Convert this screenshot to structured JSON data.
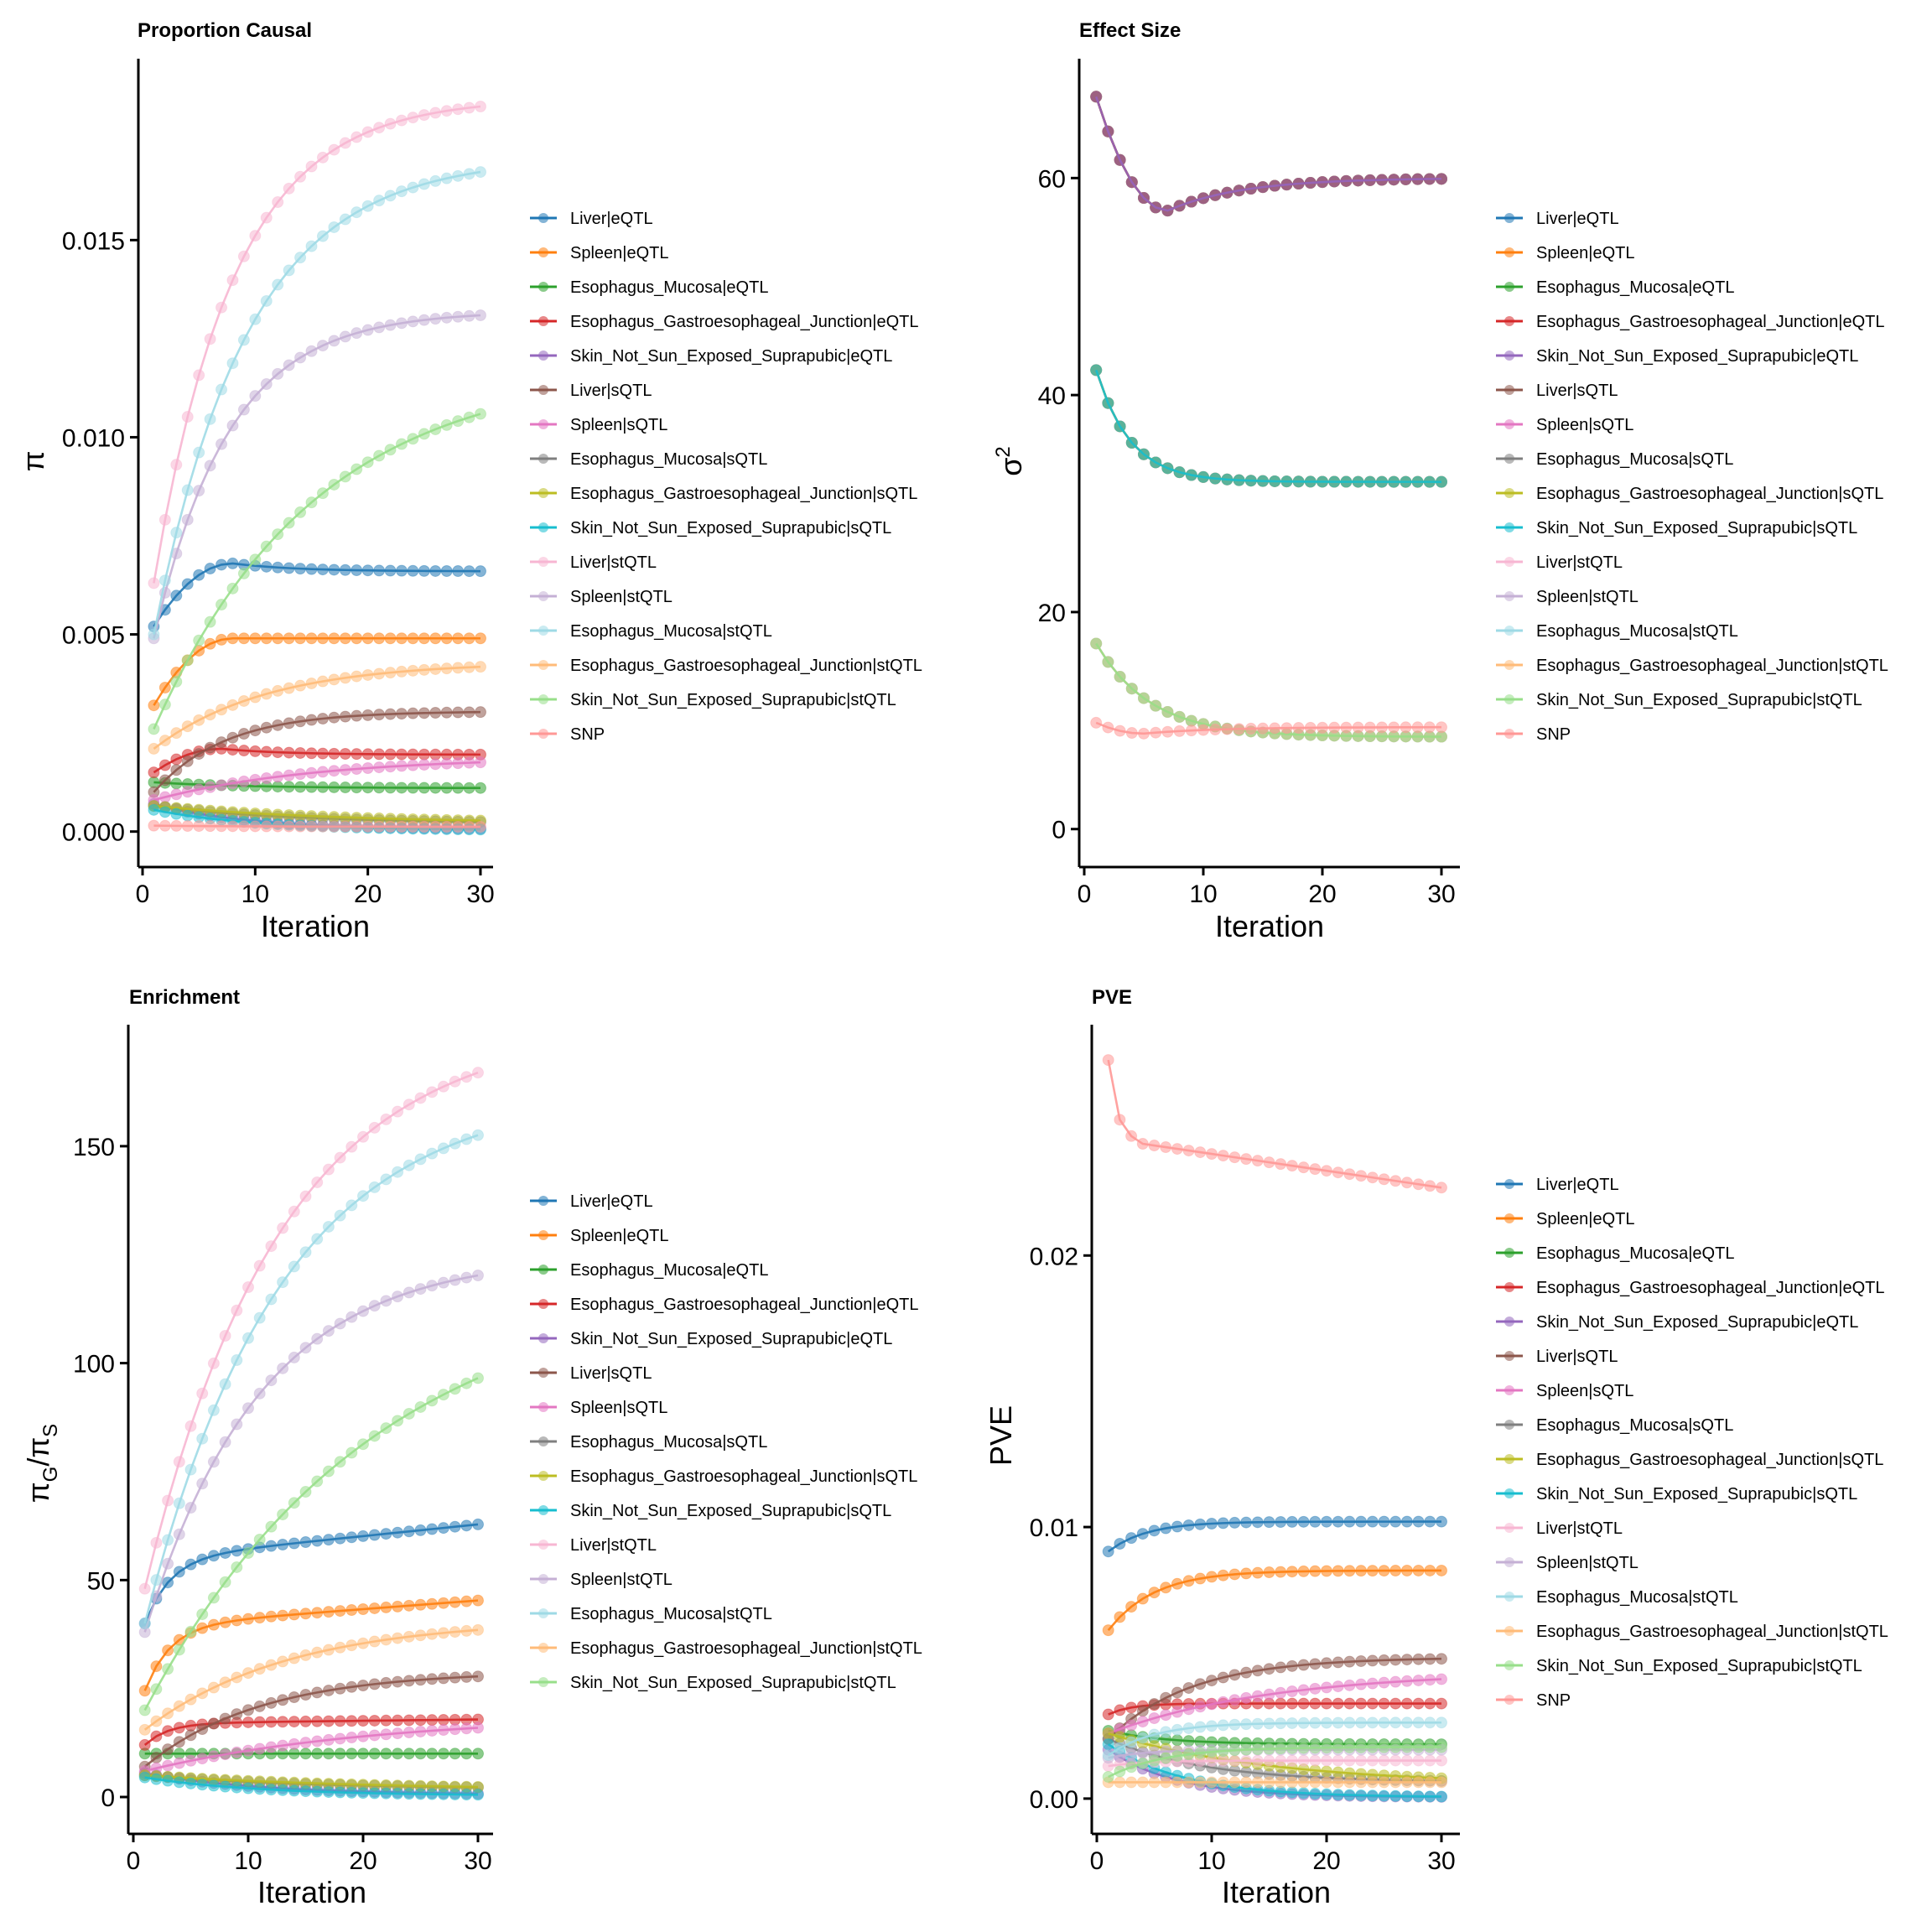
{
  "palette": {
    "Liver|eQTL": "#1f77b4",
    "Spleen|eQTL": "#ff7f0e",
    "Esophagus_Mucosa|eQTL": "#2ca02c",
    "Esophagus_Gastroesophageal_Junction|eQTL": "#d62728",
    "Skin_Not_Sun_Exposed_Suprapubic|eQTL": "#9467bd",
    "Liver|sQTL": "#8c564b",
    "Spleen|sQTL": "#e377c2",
    "Esophagus_Mucosa|sQTL": "#7f7f7f",
    "Esophagus_Gastroesophageal_Junction|sQTL": "#bcbd22",
    "Skin_Not_Sun_Exposed_Suprapubic|sQTL": "#17becf",
    "Liver|stQTL": "#f7b6d2",
    "Spleen|stQTL": "#c5b0d5",
    "Esophagus_Mucosa|stQTL": "#9edae5",
    "Esophagus_Gastroesophageal_Junction|stQTL": "#ffbb78",
    "Skin_Not_Sun_Exposed_Suprapubic|stQTL": "#98df8a",
    "SNP": "#ff9896"
  },
  "chart_data": [
    {
      "id": "proportion-causal",
      "type": "line",
      "title": "Proportion Causal",
      "xlabel": "Iteration",
      "ylabel": "π",
      "xlim": [
        0,
        31
      ],
      "ylim": [
        -0.0009,
        0.0196
      ],
      "xticks": [
        0,
        10,
        20,
        30
      ],
      "xtick_labels": [
        "0",
        "10",
        "20",
        "30"
      ],
      "yticks": [
        0.0,
        0.005,
        0.01,
        0.015
      ],
      "ytick_labels": [
        "0.000",
        "0.005",
        "0.010",
        "0.015"
      ],
      "grid": false,
      "legend_position": "right",
      "series": [
        {
          "name": "Liver|eQTL",
          "curve": {
            "type": "hump",
            "start": 0.0052,
            "peak": 0.0068,
            "peak_at": 8,
            "end": 0.0066
          }
        },
        {
          "name": "Spleen|eQTL",
          "curve": {
            "type": "hump",
            "start": 0.0032,
            "peak": 0.0049,
            "peak_at": 8,
            "end": 0.0049
          }
        },
        {
          "name": "Esophagus_Mucosa|eQTL",
          "curve": {
            "type": "exp",
            "start": 0.00125,
            "end": 0.0011,
            "rate": 0.12
          }
        },
        {
          "name": "Esophagus_Gastroesophageal_Junction|eQTL",
          "curve": {
            "type": "hump",
            "start": 0.0015,
            "peak": 0.0021,
            "peak_at": 7,
            "end": 0.00195
          }
        },
        {
          "name": "Skin_Not_Sun_Exposed_Suprapubic|eQTL",
          "curve": {
            "type": "exp",
            "start": 0.0007,
            "end": 5e-05,
            "rate": 0.12
          }
        },
        {
          "name": "Liver|sQTL",
          "curve": {
            "type": "exp",
            "start": 0.001,
            "end": 0.00305,
            "rate": 0.16
          }
        },
        {
          "name": "Spleen|sQTL",
          "curve": {
            "type": "exp",
            "start": 0.0008,
            "end": 0.0019,
            "rate": 0.07
          }
        },
        {
          "name": "Esophagus_Mucosa|sQTL",
          "curve": {
            "type": "exp",
            "start": 0.00065,
            "end": 0.0002,
            "rate": 0.08
          }
        },
        {
          "name": "Esophagus_Gastroesophageal_Junction|sQTL",
          "curve": {
            "type": "exp",
            "start": 0.00065,
            "end": 0.0002,
            "rate": 0.06
          }
        },
        {
          "name": "Skin_Not_Sun_Exposed_Suprapubic|sQTL",
          "curve": {
            "type": "exp",
            "start": 0.00055,
            "end": 3e-05,
            "rate": 0.11
          }
        },
        {
          "name": "Liver|stQTL",
          "curve": {
            "type": "exp",
            "start": 0.0063,
            "end": 0.0186,
            "rate": 0.14
          }
        },
        {
          "name": "Spleen|stQTL",
          "curve": {
            "type": "exp",
            "start": 0.0049,
            "end": 0.0132,
            "rate": 0.15
          }
        },
        {
          "name": "Esophagus_Mucosa|stQTL",
          "curve": {
            "type": "exp",
            "start": 0.005,
            "end": 0.0171,
            "rate": 0.12
          }
        },
        {
          "name": "Esophagus_Gastroesophageal_Junction|stQTL",
          "curve": {
            "type": "exp",
            "start": 0.0021,
            "end": 0.0043,
            "rate": 0.1
          }
        },
        {
          "name": "Skin_Not_Sun_Exposed_Suprapubic|stQTL",
          "curve": {
            "type": "exp",
            "start": 0.0026,
            "end": 0.0118,
            "rate": 0.07
          }
        },
        {
          "name": "SNP",
          "curve": {
            "type": "exp",
            "start": 0.00015,
            "end": 0.00012,
            "rate": 0.1
          }
        }
      ]
    },
    {
      "id": "effect-size",
      "type": "line",
      "title": "Effect Size",
      "xlabel": "Iteration",
      "ylabel": "σ²",
      "xlim": [
        0,
        31
      ],
      "ylim": [
        -3.5,
        71
      ],
      "xticks": [
        0,
        10,
        20,
        30
      ],
      "xtick_labels": [
        "0",
        "10",
        "20",
        "30"
      ],
      "yticks": [
        0,
        20,
        40,
        60
      ],
      "ytick_labels": [
        "0",
        "20",
        "40",
        "60"
      ],
      "grid": false,
      "legend_position": "right",
      "series": [
        {
          "name": "Liver|eQTL",
          "group": "eQTL",
          "curve": {
            "type": "dip",
            "start": 67.5,
            "min": 57.0,
            "min_at": 7,
            "end": 60.0
          }
        },
        {
          "name": "Spleen|eQTL",
          "group": "eQTL",
          "curve": {
            "type": "dip",
            "start": 67.5,
            "min": 57.0,
            "min_at": 7,
            "end": 60.0
          }
        },
        {
          "name": "Esophagus_Mucosa|eQTL",
          "group": "eQTL",
          "curve": {
            "type": "dip",
            "start": 67.5,
            "min": 57.0,
            "min_at": 7,
            "end": 60.0
          }
        },
        {
          "name": "Esophagus_Gastroesophageal_Junction|eQTL",
          "group": "eQTL",
          "curve": {
            "type": "dip",
            "start": 67.5,
            "min": 57.0,
            "min_at": 7,
            "end": 60.0
          }
        },
        {
          "name": "Skin_Not_Sun_Exposed_Suprapubic|eQTL",
          "group": "eQTL",
          "curve": {
            "type": "dip",
            "start": 67.5,
            "min": 57.0,
            "min_at": 7,
            "end": 60.0
          }
        },
        {
          "name": "Liver|sQTL",
          "group": "sQTL",
          "curve": {
            "type": "exp",
            "start": 42.3,
            "end": 32.0,
            "rate": 0.35
          }
        },
        {
          "name": "Spleen|sQTL",
          "group": "sQTL",
          "curve": {
            "type": "exp",
            "start": 42.3,
            "end": 32.0,
            "rate": 0.35
          }
        },
        {
          "name": "Esophagus_Mucosa|sQTL",
          "group": "sQTL",
          "curve": {
            "type": "exp",
            "start": 42.3,
            "end": 32.0,
            "rate": 0.35
          }
        },
        {
          "name": "Esophagus_Gastroesophageal_Junction|sQTL",
          "group": "sQTL",
          "curve": {
            "type": "exp",
            "start": 42.3,
            "end": 32.0,
            "rate": 0.35
          }
        },
        {
          "name": "Skin_Not_Sun_Exposed_Suprapubic|sQTL",
          "group": "sQTL",
          "curve": {
            "type": "exp",
            "start": 42.3,
            "end": 32.0,
            "rate": 0.35
          }
        },
        {
          "name": "Liver|stQTL",
          "group": "stQTL",
          "curve": {
            "type": "exp",
            "start": 17.1,
            "end": 8.5,
            "rate": 0.22
          }
        },
        {
          "name": "Spleen|stQTL",
          "group": "stQTL",
          "curve": {
            "type": "exp",
            "start": 17.1,
            "end": 8.5,
            "rate": 0.22
          }
        },
        {
          "name": "Esophagus_Mucosa|stQTL",
          "group": "stQTL",
          "curve": {
            "type": "exp",
            "start": 17.1,
            "end": 8.5,
            "rate": 0.22
          }
        },
        {
          "name": "Esophagus_Gastroesophageal_Junction|stQTL",
          "group": "stQTL",
          "curve": {
            "type": "exp",
            "start": 17.1,
            "end": 8.5,
            "rate": 0.22
          }
        },
        {
          "name": "Skin_Not_Sun_Exposed_Suprapubic|stQTL",
          "group": "stQTL",
          "curve": {
            "type": "exp",
            "start": 17.1,
            "end": 8.5,
            "rate": 0.22
          }
        },
        {
          "name": "SNP",
          "group": "SNP",
          "curve": {
            "type": "dip",
            "start": 9.8,
            "min": 8.8,
            "min_at": 5,
            "end": 9.4
          }
        }
      ]
    },
    {
      "id": "enrichment",
      "type": "line",
      "title": "Enrichment",
      "xlabel": "Iteration",
      "ylabel": "πG/πS",
      "xlim": [
        0,
        31
      ],
      "ylim": [
        -8.5,
        178
      ],
      "xticks": [
        0,
        10,
        20,
        30
      ],
      "xtick_labels": [
        "0",
        "10",
        "20",
        "30"
      ],
      "yticks": [
        0,
        50,
        100,
        150
      ],
      "ytick_labels": [
        "0",
        "50",
        "100",
        "150"
      ],
      "grid": false,
      "legend_position": "right",
      "series": [
        {
          "name": "Liver|eQTL",
          "curve": {
            "type": "satlin",
            "start": 40,
            "plateau": 55,
            "rate": 0.45,
            "slope": 0.27
          }
        },
        {
          "name": "Spleen|eQTL",
          "curve": {
            "type": "satlin",
            "start": 24.5,
            "plateau": 39.5,
            "rate": 0.45,
            "slope": 0.2
          }
        },
        {
          "name": "Esophagus_Mucosa|eQTL",
          "curve": {
            "type": "exp",
            "start": 10,
            "end": 10,
            "rate": 0.1
          }
        },
        {
          "name": "Esophagus_Gastroesophageal_Junction|eQTL",
          "curve": {
            "type": "satlin",
            "start": 12,
            "plateau": 17,
            "rate": 0.5,
            "slope": 0.03
          }
        },
        {
          "name": "Skin_Not_Sun_Exposed_Suprapubic|eQTL",
          "curve": {
            "type": "exp",
            "start": 5.5,
            "end": 0.5,
            "rate": 0.1
          }
        },
        {
          "name": "Liver|sQTL",
          "curve": {
            "type": "exp",
            "start": 7,
            "end": 29,
            "rate": 0.1
          }
        },
        {
          "name": "Spleen|sQTL",
          "curve": {
            "type": "exp",
            "start": 6,
            "end": 19,
            "rate": 0.05
          }
        },
        {
          "name": "Esophagus_Mucosa|sQTL",
          "curve": {
            "type": "exp",
            "start": 5,
            "end": 1.8,
            "rate": 0.07
          }
        },
        {
          "name": "Esophagus_Gastroesophageal_Junction|sQTL",
          "curve": {
            "type": "exp",
            "start": 5,
            "end": 1.5,
            "rate": 0.05
          }
        },
        {
          "name": "Skin_Not_Sun_Exposed_Suprapubic|sQTL",
          "curve": {
            "type": "exp",
            "start": 4.5,
            "end": 0.3,
            "rate": 0.1
          }
        },
        {
          "name": "Liver|stQTL",
          "curve": {
            "type": "exp",
            "start": 48,
            "end": 178,
            "rate": 0.085
          }
        },
        {
          "name": "Spleen|stQTL",
          "curve": {
            "type": "exp",
            "start": 38,
            "end": 125,
            "rate": 0.1
          }
        },
        {
          "name": "Esophagus_Mucosa|stQTL",
          "curve": {
            "type": "exp",
            "start": 40,
            "end": 163,
            "rate": 0.085
          }
        },
        {
          "name": "Esophagus_Gastroesophageal_Junction|stQTL",
          "curve": {
            "type": "exp",
            "start": 15.5,
            "end": 41,
            "rate": 0.08
          }
        },
        {
          "name": "Skin_Not_Sun_Exposed_Suprapubic|stQTL",
          "curve": {
            "type": "exp",
            "start": 20,
            "end": 120,
            "rate": 0.05
          }
        }
      ]
    },
    {
      "id": "pve",
      "type": "line",
      "title": "PVE",
      "xlabel": "Iteration",
      "ylabel": "PVE",
      "xlim": [
        0,
        31
      ],
      "ylim": [
        -0.0013,
        0.0285
      ],
      "xticks": [
        0,
        10,
        20,
        30
      ],
      "xtick_labels": [
        "0",
        "10",
        "20",
        "30"
      ],
      "yticks": [
        0.0,
        0.01,
        0.02
      ],
      "ytick_labels": [
        "0.00",
        "0.01",
        "0.02"
      ],
      "grid": false,
      "legend_position": "right",
      "series": [
        {
          "name": "Liver|eQTL",
          "curve": {
            "type": "exp",
            "start": 0.0091,
            "end": 0.0102,
            "rate": 0.3
          }
        },
        {
          "name": "Spleen|eQTL",
          "curve": {
            "type": "exp",
            "start": 0.0062,
            "end": 0.0084,
            "rate": 0.25
          }
        },
        {
          "name": "Esophagus_Mucosa|eQTL",
          "curve": {
            "type": "exp",
            "start": 0.0025,
            "end": 0.002,
            "rate": 0.2
          }
        },
        {
          "name": "Esophagus_Gastroesophageal_Junction|eQTL",
          "curve": {
            "type": "exp",
            "start": 0.0031,
            "end": 0.0035,
            "rate": 0.5
          }
        },
        {
          "name": "Skin_Not_Sun_Exposed_Suprapubic|eQTL",
          "curve": {
            "type": "exp",
            "start": 0.0018,
            "end": 5e-05,
            "rate": 0.17
          }
        },
        {
          "name": "Liver|sQTL",
          "curve": {
            "type": "exp",
            "start": 0.0022,
            "end": 0.0052,
            "rate": 0.14
          }
        },
        {
          "name": "Spleen|sQTL",
          "curve": {
            "type": "exp",
            "start": 0.0024,
            "end": 0.0047,
            "rate": 0.07
          }
        },
        {
          "name": "Esophagus_Mucosa|sQTL",
          "curve": {
            "type": "exp",
            "start": 0.0022,
            "end": 0.0006,
            "rate": 0.12
          }
        },
        {
          "name": "Esophagus_Gastroesophageal_Junction|sQTL",
          "curve": {
            "type": "exp",
            "start": 0.0024,
            "end": 0.0005,
            "rate": 0.07
          }
        },
        {
          "name": "Skin_Not_Sun_Exposed_Suprapubic|sQTL",
          "curve": {
            "type": "exp",
            "start": 0.002,
            "end": 5e-05,
            "rate": 0.15
          }
        },
        {
          "name": "Liver|stQTL",
          "curve": {
            "type": "exp",
            "start": 0.0012,
            "end": 0.0014,
            "rate": 0.3
          }
        },
        {
          "name": "Spleen|stQTL",
          "curve": {
            "type": "exp",
            "start": 0.0015,
            "end": 0.0018,
            "rate": 0.3
          }
        },
        {
          "name": "Esophagus_Mucosa|stQTL",
          "curve": {
            "type": "exp",
            "start": 0.0016,
            "end": 0.0028,
            "rate": 0.25
          }
        },
        {
          "name": "Esophagus_Gastroesophageal_Junction|stQTL",
          "curve": {
            "type": "exp",
            "start": 0.0006,
            "end": 0.0006,
            "rate": 0.2
          }
        },
        {
          "name": "Skin_Not_Sun_Exposed_Suprapubic|stQTL",
          "curve": {
            "type": "exp",
            "start": 0.0008,
            "end": 0.0019,
            "rate": 0.2
          }
        },
        {
          "name": "SNP",
          "curve": {
            "type": "snp",
            "start": 0.0272,
            "end": 0.0225
          }
        }
      ]
    }
  ],
  "iterations": {
    "from": 1,
    "to": 30
  },
  "legends": {
    "proportion-causal": [
      "Liver|eQTL",
      "Spleen|eQTL",
      "Esophagus_Mucosa|eQTL",
      "Esophagus_Gastroesophageal_Junction|eQTL",
      "Skin_Not_Sun_Exposed_Suprapubic|eQTL",
      "Liver|sQTL",
      "Spleen|sQTL",
      "Esophagus_Mucosa|sQTL",
      "Esophagus_Gastroesophageal_Junction|sQTL",
      "Skin_Not_Sun_Exposed_Suprapubic|sQTL",
      "Liver|stQTL",
      "Spleen|stQTL",
      "Esophagus_Mucosa|stQTL",
      "Esophagus_Gastroesophageal_Junction|stQTL",
      "Skin_Not_Sun_Exposed_Suprapubic|stQTL",
      "SNP"
    ],
    "effect-size": [
      "Liver|eQTL",
      "Spleen|eQTL",
      "Esophagus_Mucosa|eQTL",
      "Esophagus_Gastroesophageal_Junction|eQTL",
      "Skin_Not_Sun_Exposed_Suprapubic|eQTL",
      "Liver|sQTL",
      "Spleen|sQTL",
      "Esophagus_Mucosa|sQTL",
      "Esophagus_Gastroesophageal_Junction|sQTL",
      "Skin_Not_Sun_Exposed_Suprapubic|sQTL",
      "Liver|stQTL",
      "Spleen|stQTL",
      "Esophagus_Mucosa|stQTL",
      "Esophagus_Gastroesophageal_Junction|stQTL",
      "Skin_Not_Sun_Exposed_Suprapubic|stQTL",
      "SNP"
    ],
    "enrichment": [
      "Liver|eQTL",
      "Spleen|eQTL",
      "Esophagus_Mucosa|eQTL",
      "Esophagus_Gastroesophageal_Junction|eQTL",
      "Skin_Not_Sun_Exposed_Suprapubic|eQTL",
      "Liver|sQTL",
      "Spleen|sQTL",
      "Esophagus_Mucosa|sQTL",
      "Esophagus_Gastroesophageal_Junction|sQTL",
      "Skin_Not_Sun_Exposed_Suprapubic|sQTL",
      "Liver|stQTL",
      "Spleen|stQTL",
      "Esophagus_Mucosa|stQTL",
      "Esophagus_Gastroesophageal_Junction|stQTL",
      "Skin_Not_Sun_Exposed_Suprapubic|stQTL"
    ],
    "pve": [
      "Liver|eQTL",
      "Spleen|eQTL",
      "Esophagus_Mucosa|eQTL",
      "Esophagus_Gastroesophageal_Junction|eQTL",
      "Skin_Not_Sun_Exposed_Suprapubic|eQTL",
      "Liver|sQTL",
      "Spleen|sQTL",
      "Esophagus_Mucosa|sQTL",
      "Esophagus_Gastroesophageal_Junction|sQTL",
      "Skin_Not_Sun_Exposed_Suprapubic|sQTL",
      "Liver|stQTL",
      "Spleen|stQTL",
      "Esophagus_Mucosa|stQTL",
      "Esophagus_Gastroesophageal_Junction|stQTL",
      "Skin_Not_Sun_Exposed_Suprapubic|stQTL",
      "SNP"
    ]
  }
}
